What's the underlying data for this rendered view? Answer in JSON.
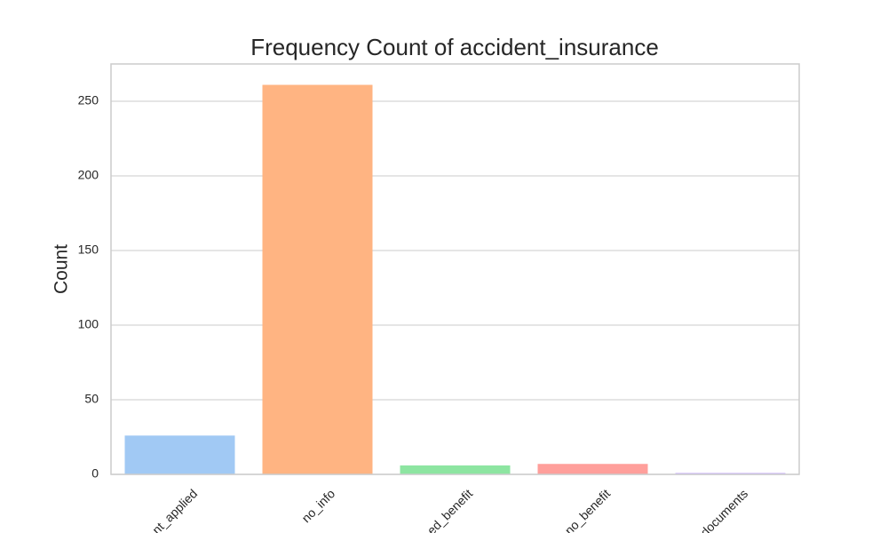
{
  "chart_data": {
    "type": "bar",
    "title": "Frequency Count of accident_insurance",
    "y_label": "Count",
    "categories": [
      "nt_applied",
      "no_info",
      "ed_benefit",
      "no_benefit",
      "documents"
    ],
    "values": [
      26,
      261,
      6,
      7,
      1
    ],
    "colors": [
      "#a1c9f4",
      "#ffb482",
      "#8de5a1",
      "#ff9f9b",
      "#d0bbff"
    ],
    "ylim": [
      0,
      275
    ],
    "yticks": [
      0,
      50,
      100,
      150,
      200,
      250
    ],
    "grid": true
  }
}
